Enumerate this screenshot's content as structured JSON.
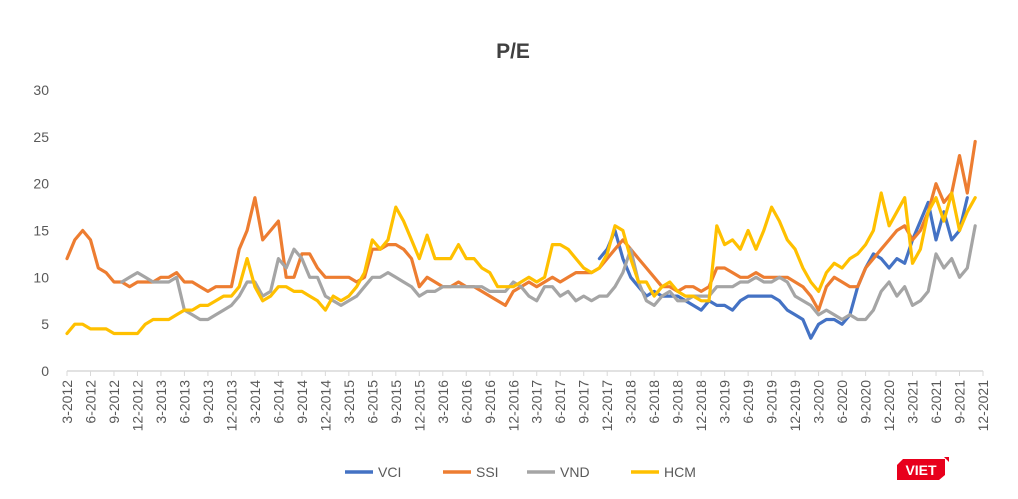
{
  "chart_data": {
    "type": "line",
    "title": "P/E",
    "ylim": [
      0,
      30
    ],
    "yticks": [
      0,
      5,
      10,
      15,
      20,
      25,
      30
    ],
    "xtick_labels": [
      "3-2012",
      "6-2012",
      "9-2012",
      "12-2012",
      "3-2013",
      "6-2013",
      "9-2013",
      "12-2013",
      "3-2014",
      "6-2014",
      "9-2014",
      "12-2014",
      "3-2015",
      "6-2015",
      "9-2015",
      "12-2015",
      "3-2016",
      "6-2016",
      "9-2016",
      "12-2016",
      "3-2017",
      "6-2017",
      "9-2017",
      "12-2017",
      "3-2018",
      "6-2018",
      "9-2018",
      "12-2018",
      "3-2019",
      "6-2019",
      "9-2019",
      "12-2019",
      "3-2020",
      "6-2020",
      "9-2020",
      "12-2020",
      "3-2021",
      "6-2021",
      "9-2021",
      "12-2021"
    ],
    "x_first": "3-2012",
    "x_frequency": "monthly",
    "grid": false,
    "legend_position": "bottom",
    "series": [
      {
        "name": "VCI",
        "color": "#4472C4",
        "values": [
          null,
          null,
          null,
          null,
          null,
          null,
          null,
          null,
          null,
          null,
          null,
          null,
          null,
          null,
          null,
          null,
          null,
          null,
          null,
          null,
          null,
          null,
          null,
          null,
          null,
          null,
          null,
          null,
          null,
          null,
          null,
          null,
          null,
          null,
          null,
          null,
          null,
          null,
          null,
          null,
          null,
          null,
          null,
          null,
          null,
          null,
          null,
          null,
          null,
          null,
          null,
          null,
          null,
          null,
          null,
          null,
          null,
          null,
          null,
          null,
          null,
          null,
          null,
          null,
          null,
          null,
          null,
          null,
          12,
          13,
          15,
          12,
          10,
          9,
          8,
          8.5,
          8,
          8,
          8,
          7.5,
          7,
          6.5,
          7.5,
          7,
          7,
          6.5,
          7.5,
          8,
          8,
          8,
          8,
          7.5,
          6.5,
          6,
          5.5,
          3.5,
          5,
          5.5,
          5.5,
          5,
          6,
          9,
          11,
          12.5,
          12,
          11,
          12,
          11.5,
          14,
          16,
          18,
          14,
          17,
          14,
          15,
          18.5
        ]
      },
      {
        "name": "SSI",
        "color": "#ED7D31",
        "values": [
          12,
          14,
          15,
          14,
          11,
          10.5,
          9.5,
          9.5,
          9,
          9.5,
          9.5,
          9.5,
          10,
          10,
          10.5,
          9.5,
          9.5,
          9,
          8.5,
          9,
          9,
          9,
          13,
          15,
          18.5,
          14,
          15,
          16,
          10,
          10,
          12.5,
          12.5,
          11,
          10,
          10,
          10,
          10,
          9.5,
          10,
          13,
          13,
          13.5,
          13.5,
          13,
          12,
          9,
          10,
          9.5,
          9,
          9,
          9.5,
          9,
          9,
          8.5,
          8,
          7.5,
          7,
          8.5,
          9,
          9.5,
          9,
          9.5,
          10,
          9.5,
          10,
          10.5,
          10.5,
          10.5,
          11,
          12,
          13,
          14,
          13,
          12,
          11,
          10,
          9,
          9,
          8.5,
          9,
          9,
          8.5,
          9,
          11,
          11,
          10.5,
          10,
          10,
          10.5,
          10,
          10,
          10,
          10,
          9.5,
          9,
          8,
          6.5,
          9,
          10,
          9.5,
          9,
          9,
          11,
          12,
          13,
          14,
          15,
          15.5,
          14,
          15,
          17,
          20,
          18,
          19,
          23,
          19,
          24.5
        ]
      },
      {
        "name": "VND",
        "color": "#A5A5A5",
        "values": [
          null,
          null,
          null,
          null,
          null,
          null,
          null,
          9.5,
          10,
          10.5,
          10,
          9.5,
          9.5,
          9.5,
          10,
          6.5,
          6,
          5.5,
          5.5,
          6,
          6.5,
          7,
          8,
          9.5,
          9.5,
          8,
          8.5,
          12,
          11,
          13,
          12,
          10,
          10,
          8,
          7.5,
          7,
          7.5,
          8,
          9,
          10,
          10,
          10.5,
          10,
          9.5,
          9,
          8,
          8.5,
          8.5,
          9,
          9,
          9,
          9,
          9,
          9,
          8.5,
          8.5,
          8.5,
          9.5,
          9,
          8,
          7.5,
          9,
          9,
          8,
          8.5,
          7.5,
          8,
          7.5,
          8,
          8,
          9,
          10.5,
          13,
          9.5,
          7.5,
          7,
          8,
          8.5,
          7.5,
          7.5,
          8,
          8,
          8,
          9,
          9,
          9,
          9.5,
          9.5,
          10,
          9.5,
          9.5,
          10,
          9.5,
          8,
          7.5,
          7,
          6,
          6.5,
          6,
          5.5,
          6,
          5.5,
          5.5,
          6.5,
          8.5,
          9.5,
          8,
          9,
          7,
          7.5,
          8.5,
          12.5,
          11,
          12,
          10,
          11,
          15.5
        ]
      },
      {
        "name": "HCM",
        "color": "#FFC000",
        "values": [
          4,
          5,
          5,
          4.5,
          4.5,
          4.5,
          4,
          4,
          4,
          4,
          5,
          5.5,
          5.5,
          5.5,
          6,
          6.5,
          6.5,
          7,
          7,
          7.5,
          8,
          8,
          9,
          12,
          9,
          7.5,
          8,
          9,
          9,
          8.5,
          8.5,
          8,
          7.5,
          6.5,
          8,
          7.5,
          8,
          9,
          10.5,
          14,
          13,
          14,
          17.5,
          16,
          14,
          12,
          14.5,
          12,
          12,
          12,
          13.5,
          12,
          12,
          11,
          10.5,
          9,
          9,
          9,
          9.5,
          10,
          9.5,
          10,
          13.5,
          13.5,
          13,
          12,
          11,
          10.5,
          11,
          12.5,
          15.5,
          15,
          12,
          9.5,
          9.5,
          8,
          9,
          9.5,
          8.5,
          8,
          8,
          7.5,
          7.5,
          15.5,
          13.5,
          14,
          13,
          15,
          13,
          15,
          17.5,
          16,
          14,
          13,
          11,
          9.5,
          8.5,
          10.5,
          11.5,
          11,
          12,
          12.5,
          13.5,
          15,
          19,
          15.5,
          17,
          18.5,
          11.5,
          13,
          17,
          18.5,
          16,
          19,
          15,
          17,
          18.5
        ]
      }
    ]
  },
  "logo": {
    "text": "VIET",
    "color": "#E8001C"
  }
}
